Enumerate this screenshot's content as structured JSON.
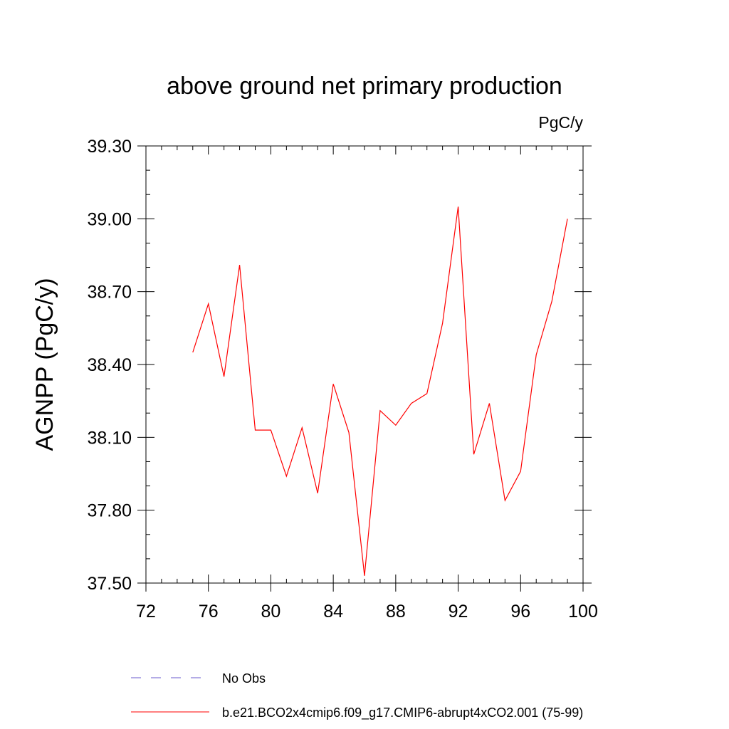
{
  "chart_data": {
    "type": "line",
    "title": "above ground net primary production",
    "units_label": "PgC/y",
    "ylabel": "AGNPP  (PgC/y)",
    "xlabel": "",
    "xlim": [
      72,
      100
    ],
    "ylim": [
      37.5,
      39.3
    ],
    "xticks": [
      72,
      76,
      80,
      84,
      88,
      92,
      96,
      100
    ],
    "xtick_labels": [
      "72",
      "76",
      "80",
      "84",
      "88",
      "92",
      "96",
      "100"
    ],
    "yticks": [
      37.5,
      37.8,
      38.1,
      38.4,
      38.7,
      39.0,
      39.3
    ],
    "ytick_labels": [
      "37.50",
      "37.80",
      "38.10",
      "38.40",
      "38.70",
      "39.00",
      "39.30"
    ],
    "x_minor_step": 1,
    "y_minor_step": 0.1,
    "grid": false,
    "legend_position": "bottom",
    "series": [
      {
        "name": "b.e21.BCO2x4cmip6.f09_g17.CMIP6-abrupt4xCO2.001 (75-99)",
        "color": "#ff0000",
        "dash": "solid",
        "x": [
          75,
          76,
          77,
          78,
          79,
          80,
          81,
          82,
          83,
          84,
          85,
          86,
          87,
          88,
          89,
          90,
          91,
          92,
          93,
          94,
          95,
          96,
          97,
          98,
          99
        ],
        "values": [
          38.45,
          38.65,
          38.35,
          38.81,
          38.13,
          38.13,
          37.94,
          38.14,
          37.87,
          38.32,
          38.12,
          37.53,
          38.21,
          38.15,
          38.24,
          38.28,
          38.57,
          39.05,
          38.03,
          38.24,
          37.84,
          37.96,
          38.44,
          38.66,
          39.0
        ]
      }
    ],
    "legend": [
      {
        "label": "No Obs",
        "color": "#6a5acd",
        "dash": "dashed"
      },
      {
        "label": "b.e21.BCO2x4cmip6.f09_g17.CMIP6-abrupt4xCO2.001 (75-99)",
        "color": "#ff0000",
        "dash": "solid"
      }
    ]
  }
}
